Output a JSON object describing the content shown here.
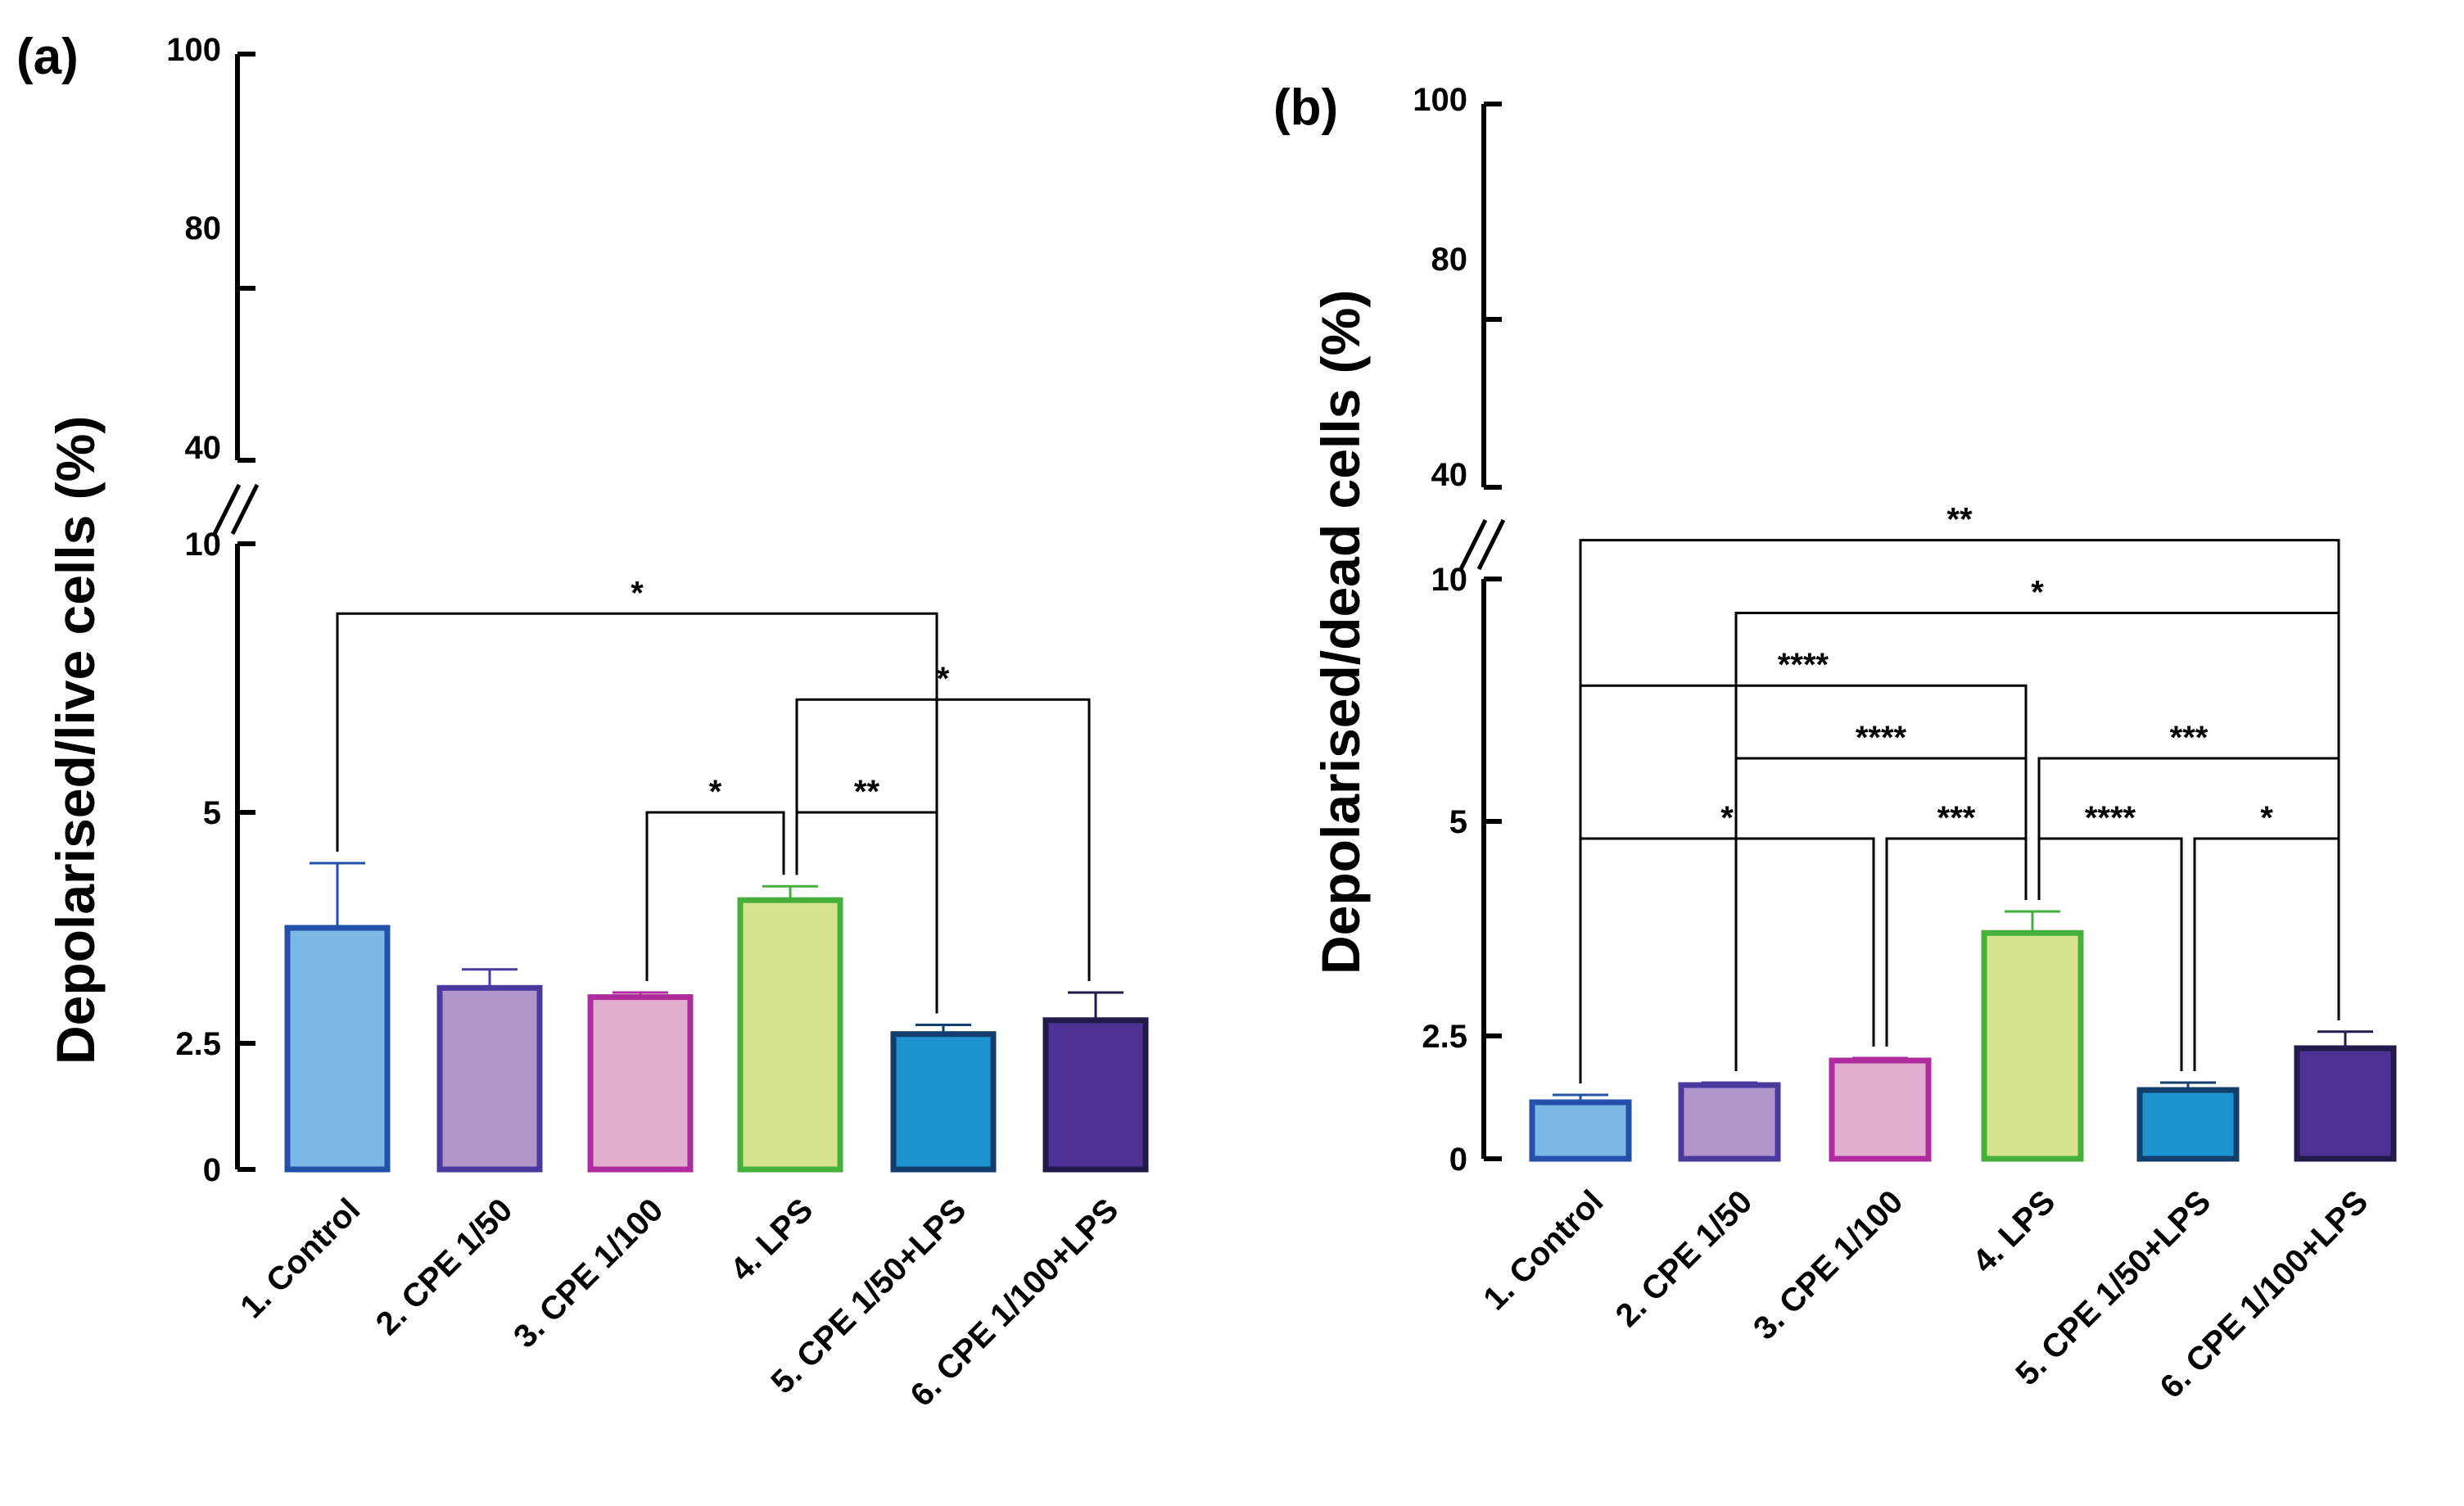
{
  "chart_data": [
    {
      "type": "bar",
      "panel_label": "(a)",
      "ylabel": "Depolarised/live cells (%)",
      "categories": [
        "1. Control",
        "2. CPE 1/50",
        "3. CPE 1/100",
        "4. LPS",
        "5. CPE 1/50+LPS",
        "6. CPE 1/100+LPS"
      ],
      "values": [
        3.75,
        3.1,
        3.0,
        4.05,
        2.6,
        2.75
      ],
      "errors": [
        0.7,
        0.2,
        0.05,
        0.15,
        0.1,
        0.3
      ],
      "colors": [
        "#7ab8e6",
        "#b196cc",
        "#e2aed0",
        "#d9e38f",
        "#1e93d0",
        "#4c3295"
      ],
      "edge_colors": [
        "#2350a8",
        "#4a3a9e",
        "#b02c9e",
        "#45b03c",
        "#113e6c",
        "#221a4a"
      ],
      "y_axis": {
        "broken": true,
        "lower": {
          "range": [
            0,
            10
          ],
          "ticks": [
            "0",
            "2.5",
            "5",
            "10"
          ]
        },
        "upper": {
          "range": [
            40,
            100
          ],
          "ticks": [
            "40",
            "80",
            "100"
          ]
        }
      },
      "significance": [
        {
          "from": 1,
          "to": 5,
          "label": "*",
          "y": 8.7
        },
        {
          "from": 4,
          "to": 6,
          "label": "*",
          "y": 7.1
        },
        {
          "from": 3,
          "to": 4,
          "label": "*",
          "y": 5.0
        },
        {
          "from": 4,
          "to": 5,
          "label": "**",
          "y": 5.0
        }
      ]
    },
    {
      "type": "bar",
      "panel_label": "(b)",
      "ylabel": "Depolarised/dead cells (%)",
      "categories": [
        "1. Control",
        "2. CPE 1/50",
        "3. CPE 1/100",
        "4. LPS",
        "5. CPE 1/50+LPS",
        "6. CPE 1/100+LPS"
      ],
      "values": [
        1.15,
        1.5,
        2.0,
        3.7,
        1.4,
        2.25
      ],
      "errors": [
        0.15,
        0.05,
        0.05,
        0.25,
        0.15,
        0.3
      ],
      "colors": [
        "#7ab8e6",
        "#b196cc",
        "#e2aed0",
        "#d9e38f",
        "#1e93d0",
        "#4c3295"
      ],
      "edge_colors": [
        "#2350a8",
        "#4a3a9e",
        "#b02c9e",
        "#45b03c",
        "#113e6c",
        "#221a4a"
      ],
      "y_axis": {
        "broken": true,
        "lower": {
          "range": [
            0,
            10
          ],
          "ticks": [
            "0",
            "2.5",
            "5",
            "10"
          ]
        },
        "upper": {
          "range": [
            40,
            100
          ],
          "ticks": [
            "40",
            "80",
            "100"
          ]
        }
      },
      "significance": [
        {
          "from": 1,
          "to": 6,
          "label": "**",
          "y": 10.8
        },
        {
          "from": 2,
          "to": 6,
          "label": "*",
          "y": 9.3
        },
        {
          "from": 1,
          "to": 4,
          "label": "****",
          "y": 7.8
        },
        {
          "from": 2,
          "to": 4,
          "label": "****",
          "y": 6.3
        },
        {
          "from": 4,
          "to": 6,
          "label": "***",
          "y": 6.3
        },
        {
          "from": 1,
          "to": 3,
          "label": "*",
          "y": 4.8
        },
        {
          "from": 3,
          "to": 4,
          "label": "***",
          "y": 4.8
        },
        {
          "from": 4,
          "to": 5,
          "label": "****",
          "y": 4.8
        },
        {
          "from": 5,
          "to": 6,
          "label": "*",
          "y": 4.8
        }
      ]
    }
  ]
}
